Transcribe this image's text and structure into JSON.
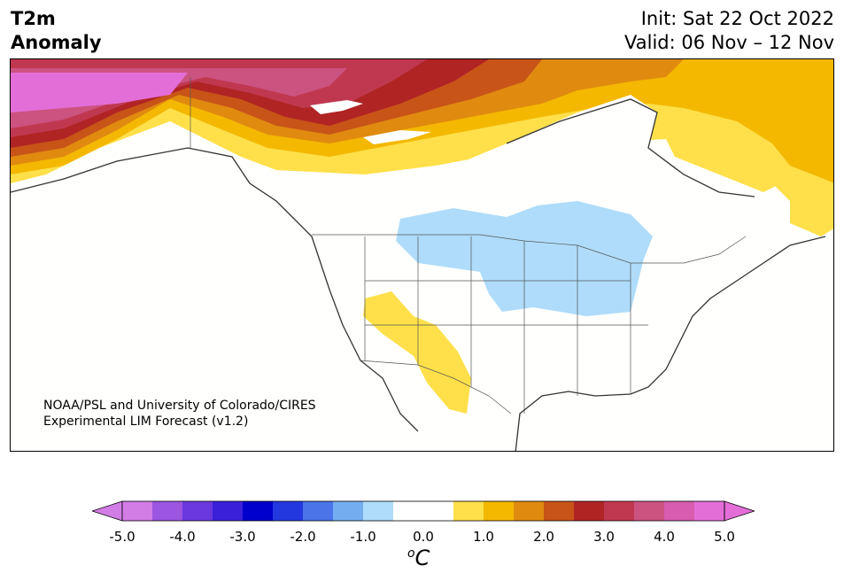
{
  "title": {
    "line1": "T2m",
    "line2": "Anomaly"
  },
  "forecast": {
    "init": "Init: Sat 22 Oct 2022",
    "valid": "Valid: 06 Nov – 12 Nov"
  },
  "credit": {
    "line1": "NOAA/PSL and University of Colorado/CIRES",
    "line2": "Experimental LIM Forecast (v1.2)"
  },
  "colorbar": {
    "unit_symbol": "o",
    "unit_letter": "C",
    "ticks": [
      "-5.0",
      "-4.0",
      "-3.0",
      "-2.0",
      "-1.0",
      "0.0",
      "1.0",
      "2.0",
      "3.0",
      "4.0",
      "5.0"
    ],
    "colors": [
      "#d27ce6",
      "#9b55e0",
      "#6a38de",
      "#3a20d8",
      "#0000cc",
      "#2438e0",
      "#4a74e8",
      "#74aef0",
      "#aedcfa",
      "#ffffff",
      "#ffffff",
      "#ffe04a",
      "#f4b800",
      "#e08a10",
      "#c85418",
      "#b02424",
      "#c03850",
      "#cc5280",
      "#d85cb0",
      "#e46ed8"
    ],
    "under_color": "#d27ce6",
    "over_color": "#e46ed8"
  },
  "map": {
    "region": "North America",
    "anomalies": [
      {
        "area": "Alaska / NW Canada",
        "level": "4.0 to 5.0",
        "color": "#e46ed8"
      },
      {
        "area": "Northern Canada",
        "level": "1.0 to 3.0",
        "color": "#e08a10"
      },
      {
        "area": "Upper Midwest / Great Lakes",
        "level": "-1.0 to -0.5",
        "color": "#aedcfa"
      },
      {
        "area": "Southwest US",
        "level": "0.5 to 1.0",
        "color": "#ffe04a"
      },
      {
        "area": "Hudson Bay / Labrador",
        "level": "0.5 to 2.0",
        "color": "#f4b800"
      }
    ]
  }
}
